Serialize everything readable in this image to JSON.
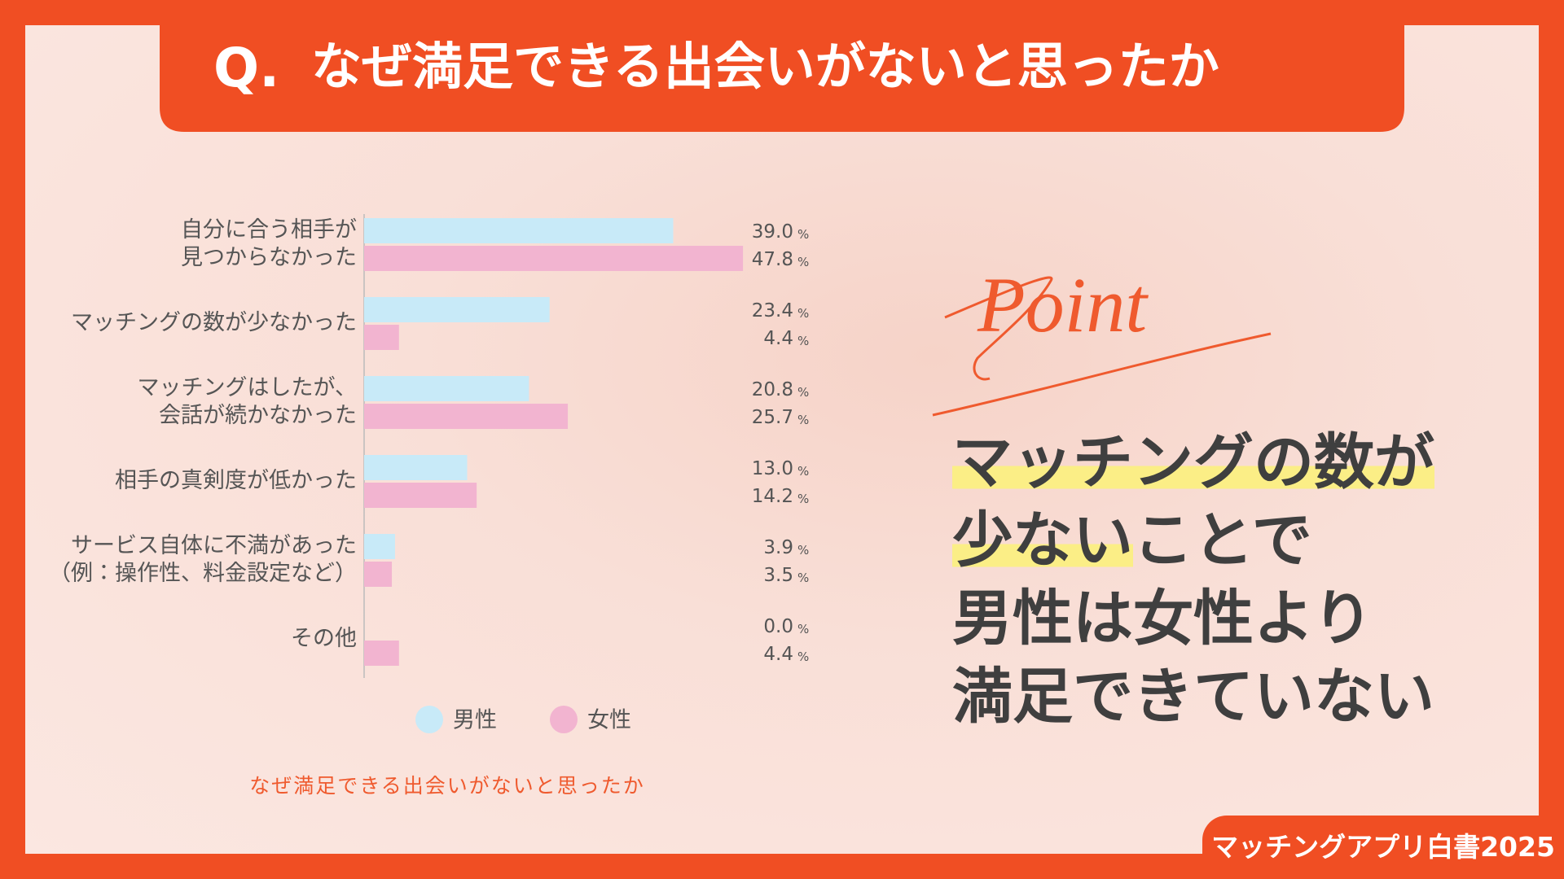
{
  "chart_data": {
    "type": "hbar",
    "title_prefix": "Q.",
    "title": "なぜ満足できる出会いがないと思ったか",
    "categories": [
      [
        "自分に合う相手が",
        "見つからなかった"
      ],
      [
        "マッチングの数が少なかった"
      ],
      [
        "マッチングはしたが、",
        "会話が続かなかった"
      ],
      [
        "相手の真剣度が低かった"
      ],
      [
        "サービス自体に不満があった",
        "（例：操作性、料金設定など）"
      ],
      [
        "その他"
      ]
    ],
    "series": [
      {
        "name": "男性",
        "color": "#c8eaf8",
        "values": [
          39.0,
          23.4,
          20.8,
          13.0,
          3.9,
          0.0
        ],
        "value_labels": [
          "39.0",
          "23.4",
          "20.8",
          "13.0",
          "3.9",
          "0.0"
        ]
      },
      {
        "name": "女性",
        "color": "#f2b4d0",
        "values": [
          47.8,
          4.4,
          25.7,
          14.2,
          3.5,
          4.4
        ],
        "value_labels": [
          "47.8",
          "4.4",
          "25.7",
          "14.2",
          "3.5",
          "4.4"
        ]
      }
    ],
    "unit": "%",
    "caption": "なぜ満足できる出会いがないと思ったか"
  },
  "point": {
    "label": "Point",
    "lines": [
      [
        {
          "text": "マッチングの数が",
          "highlight": true
        }
      ],
      [
        {
          "text": "少ない",
          "highlight": true
        },
        {
          "text": "ことで",
          "highlight": false
        }
      ],
      [
        {
          "text": "男性は女性より",
          "highlight": false
        }
      ],
      [
        {
          "text": "満足できていない",
          "highlight": false
        }
      ]
    ]
  },
  "footer": "マッチングアプリ白書2025"
}
